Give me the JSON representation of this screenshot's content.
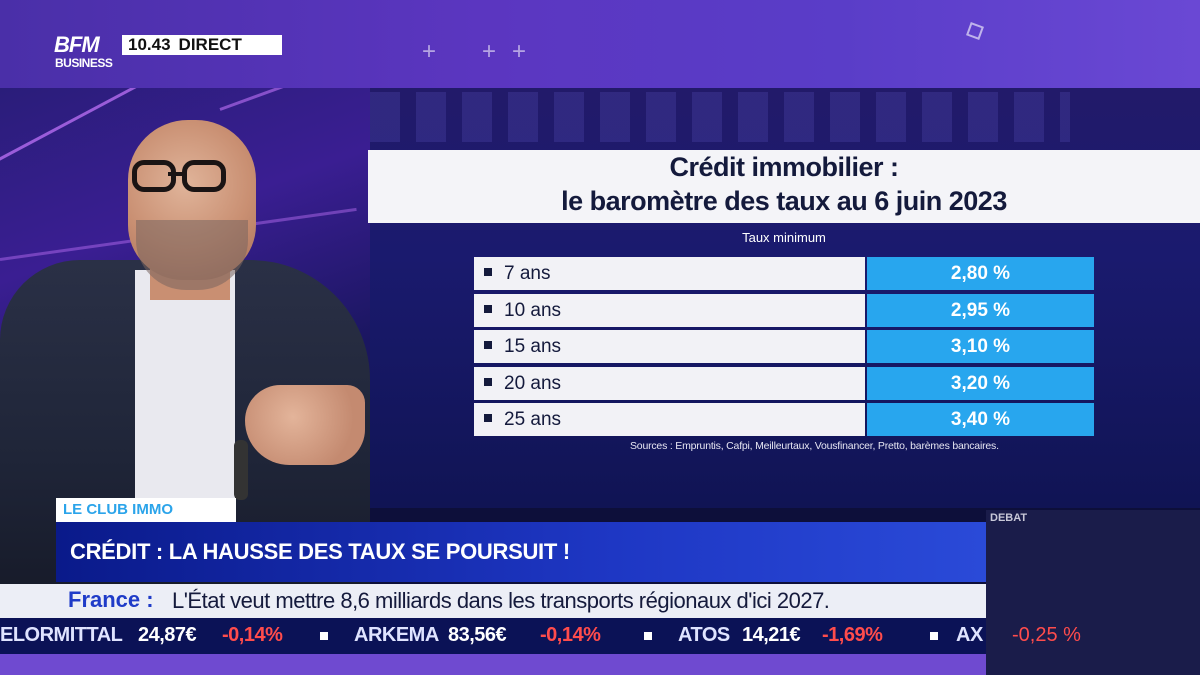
{
  "header": {
    "logo_top": "BFM",
    "logo_bottom": "BUSINESS",
    "time": "10.43",
    "live_label": "DIRECT"
  },
  "graphic": {
    "title_line1": "Crédit immobilier :",
    "title_line2": "le baromètre des taux au 6 juin 2023",
    "subtitle": "Taux minimum",
    "rows": [
      {
        "duration": "7 ans",
        "rate": "2,80 %"
      },
      {
        "duration": "10 ans",
        "rate": "2,95 %"
      },
      {
        "duration": "15 ans",
        "rate": "3,10 %"
      },
      {
        "duration": "20 ans",
        "rate": "3,20 %"
      },
      {
        "duration": "25 ans",
        "rate": "3,40 %"
      }
    ],
    "sources": "Sources : Empruntis, Cafpi, Meilleurtaux, Vousfinancer, Pretto, barèmes bancaires."
  },
  "lower_third": {
    "show_tag": "LE CLUB IMMO",
    "headline": "CRÉDIT : LA HAUSSE DES TAUX SE POURSUIT !",
    "right_label": "DEBAT"
  },
  "news_ticker": {
    "label": "France :",
    "text": "L'État veut mettre 8,6 milliards dans les transports régionaux d'ici 2027."
  },
  "stock_ticker": {
    "items": [
      {
        "name": "ELORMITTAL",
        "price": "24,87€",
        "change": "-0,14%"
      },
      {
        "name": "ARKEMA",
        "price": "83,56€",
        "change": "-0,14%"
      },
      {
        "name": "ATOS",
        "price": "14,21€",
        "change": "-1,69%"
      },
      {
        "name": "AX",
        "price": "",
        "change": ""
      }
    ],
    "right_change": "-0,25 %"
  },
  "colors": {
    "rate_cell": "#28a6ee",
    "headline_bg": "#1e37c4",
    "top_band": "#5b36c0",
    "negative": "#ff4c4c"
  }
}
